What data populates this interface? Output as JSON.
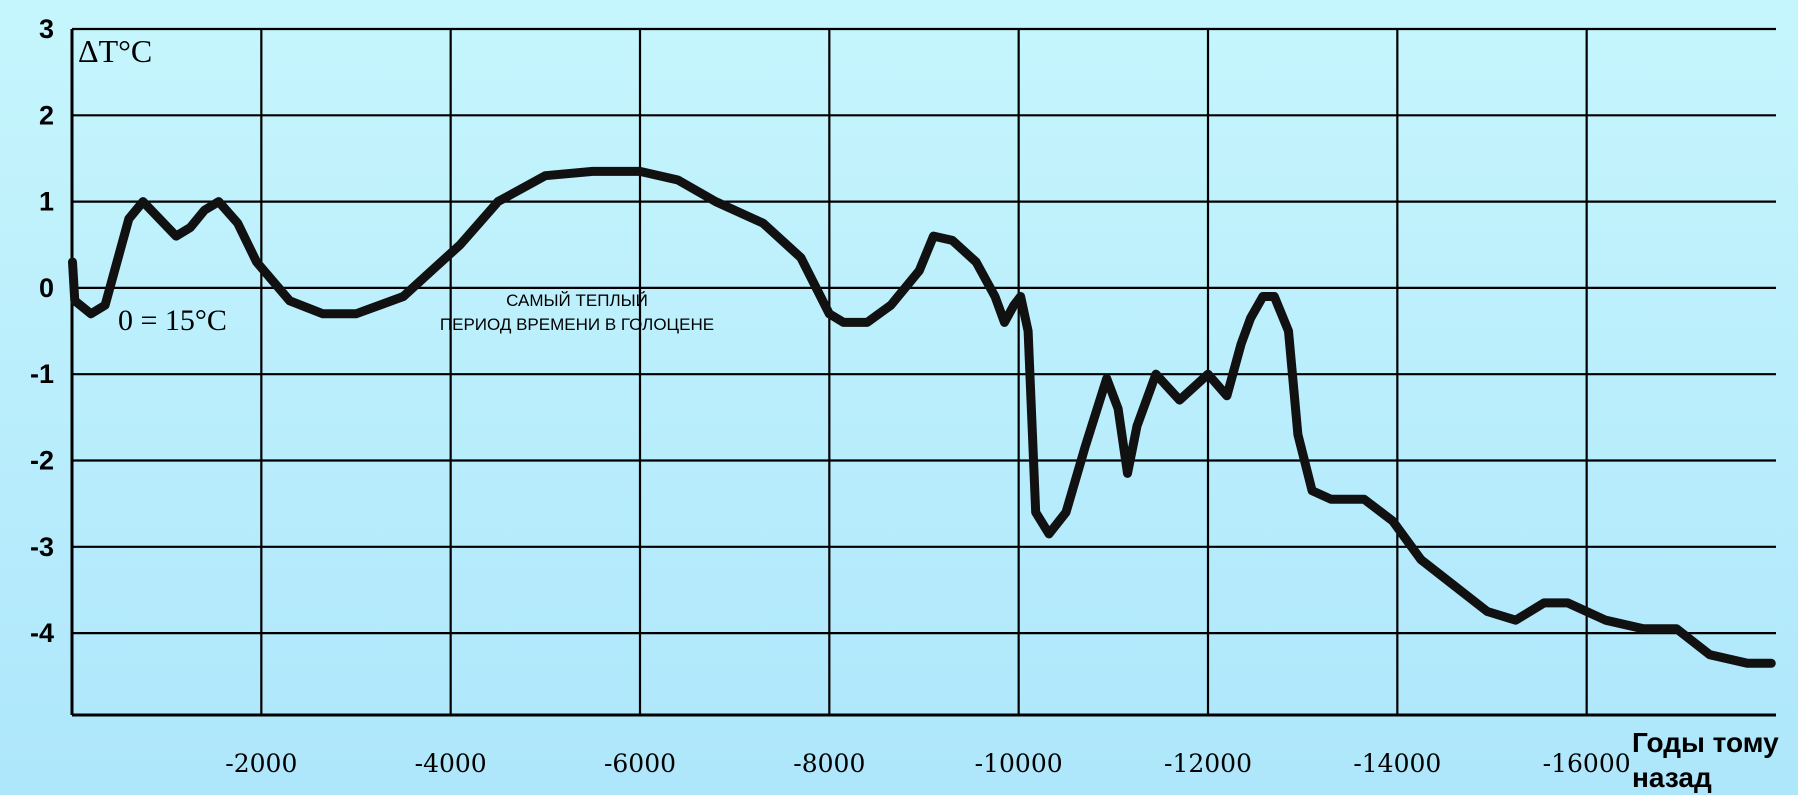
{
  "chart_data": {
    "type": "line",
    "ylabel": "ΔT°C",
    "xlabel": [
      "Годы тому",
      "назад"
    ],
    "baseline_note": "0 = 15°C",
    "annotation": [
      "САМЫЙ ТЕПЛЫЙ",
      "ПЕРИОД ВРЕМЕНИ В ГОЛОЦЕНЕ"
    ],
    "x_ticks": [
      -2000,
      -4000,
      -6000,
      -8000,
      -10000,
      -12000,
      -14000,
      -16000
    ],
    "x_tick_labels": [
      "-2000",
      "-4000",
      "-6000",
      "-8000",
      "-10000",
      "-12000",
      "-14000",
      "-16000"
    ],
    "y_ticks": [
      3,
      2,
      1,
      0,
      -1,
      -2,
      -3,
      -4
    ],
    "y_tick_labels": [
      "3",
      "2",
      "1",
      "0",
      "-1",
      "-2",
      "-3",
      "-4"
    ],
    "xlim": [
      0,
      -18000
    ],
    "ylim": [
      -5,
      3
    ],
    "x_reversed": true,
    "grid": true,
    "series": [
      {
        "color": "#111111",
        "x": [
          -5,
          -30,
          -200,
          -350,
          -600,
          -750,
          -1100,
          -1250,
          -1400,
          -1550,
          -1750,
          -1950,
          -2300,
          -2650,
          -3000,
          -3500,
          -3800,
          -4100,
          -4500,
          -5000,
          -5500,
          -6000,
          -6400,
          -6800,
          -7300,
          -7700,
          -8000,
          -8150,
          -8400,
          -8650,
          -8950,
          -9100,
          -9300,
          -9550,
          -9750,
          -9850,
          -9950,
          -10020,
          -10100,
          -10180,
          -10320,
          -10500,
          -10700,
          -10930,
          -11050,
          -11150,
          -11250,
          -11450,
          -11700,
          -12000,
          -12200,
          -12350,
          -12450,
          -12580,
          -12700,
          -12850,
          -12950,
          -13100,
          -13300,
          -13650,
          -13950,
          -14250,
          -14600,
          -14950,
          -15250,
          -15550,
          -15800,
          -16200,
          -16600,
          -16950,
          -17300,
          -17700,
          -17950
        ],
        "y": [
          0.3,
          -0.15,
          -0.3,
          -0.2,
          0.8,
          1.0,
          0.6,
          0.7,
          0.9,
          1.0,
          0.75,
          0.3,
          -0.15,
          -0.3,
          -0.3,
          -0.1,
          0.2,
          0.5,
          1.0,
          1.3,
          1.35,
          1.35,
          1.25,
          1.0,
          0.75,
          0.35,
          -0.3,
          -0.4,
          -0.4,
          -0.2,
          0.2,
          0.6,
          0.55,
          0.3,
          -0.1,
          -0.4,
          -0.2,
          -0.1,
          -0.5,
          -2.6,
          -2.85,
          -2.6,
          -1.85,
          -1.05,
          -1.4,
          -2.15,
          -1.6,
          -1.0,
          -1.3,
          -1.0,
          -1.25,
          -0.65,
          -0.35,
          -0.1,
          -0.1,
          -0.5,
          -1.7,
          -2.35,
          -2.45,
          -2.45,
          -2.7,
          -3.15,
          -3.45,
          -3.75,
          -3.85,
          -3.65,
          -3.65,
          -3.85,
          -3.95,
          -3.95,
          -4.25,
          -4.35,
          -4.35
        ]
      }
    ]
  }
}
